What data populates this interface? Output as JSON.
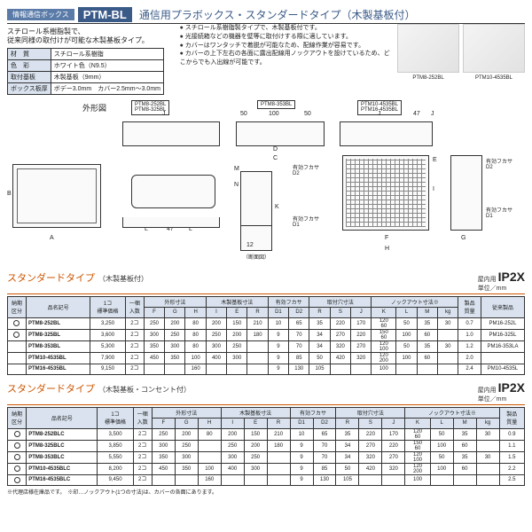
{
  "header": {
    "tag": "情報通信ボックス",
    "model": "PTM-BL",
    "title": "通信用プラボックス・スタンダードタイプ（木製基板付）"
  },
  "subtitle": "スチロール系樹脂製で、\n従来同様の取付けが可能な木製基板タイプ。",
  "features": [
    "スチロール系樹脂製タイプで、木製基板付です。",
    "光接続箱などの機器を壁等に取付けする際に適しています。",
    "カバーはワンタッチで着脱が可能なため、配線作業が容易です。",
    "カバーの上下左右の各面に露出配線用ノックアウトを設けているため、どこからでも入出線が可能です。"
  ],
  "spec": {
    "rows": [
      [
        "材　質",
        "スチロール系樹脂"
      ],
      [
        "色　彩",
        "ホワイト色（N9.5）"
      ],
      [
        "取付基板",
        "木製基板（9mm）"
      ],
      [
        "ボックス板厚",
        "ボデー3.0mm　カバー2.5mm～3.0mm"
      ]
    ]
  },
  "photos": [
    {
      "cap": "PTM8-252BL"
    },
    {
      "cap": "PTM10-4535BL"
    }
  ],
  "diagram": {
    "shape_label": "外形図",
    "group_labels": [
      "PTM8-252BL\nPTM8-325BL",
      "PTM8-353BL",
      "PTM10-4535BL\nPTM16-4535BL"
    ],
    "section_label": "（断面図）",
    "depth_labels": [
      "有効フカサ\nD2",
      "有効フカサ\nD1"
    ]
  },
  "section1": {
    "title": "スタンダードタイプ",
    "sub": "（木製基板付）",
    "ip_pre": "屋内用",
    "ip": "IP2X",
    "unit": "単位／mm",
    "head1": [
      "納期\n区分",
      "品名記号",
      "1コ\n標準価格",
      "一梱\n入数",
      "外形寸法",
      "",
      "",
      "木製基板寸法",
      "",
      "",
      "有効フカサ",
      "",
      "取付穴寸法",
      "",
      "",
      "ノックアウト寸法※",
      "",
      "",
      "",
      "製品\n質量",
      "従来製品"
    ],
    "head2": [
      "",
      "",
      "",
      "",
      "F",
      "G",
      "H",
      "I",
      "E",
      "R",
      "D1",
      "D2",
      "R",
      "S",
      "J",
      "K",
      "L",
      "M",
      "kg",
      ""
    ],
    "rows": [
      [
        "○",
        "PTM8-252BL",
        "3,250",
        "2コ",
        "250",
        "200",
        "80",
        "200",
        "150",
        "210",
        "10",
        "65",
        "35",
        "220",
        "170",
        "120\n60",
        "50",
        "35",
        "30",
        "0.7",
        "PM16-252L"
      ],
      [
        "○",
        "PTM8-325BL",
        "3,600",
        "2コ",
        "300",
        "250",
        "80",
        "250",
        "200",
        "180",
        "9",
        "70",
        "34",
        "270",
        "220",
        "150\n60",
        "100",
        "60",
        " ",
        "1.0",
        "PM16-325L"
      ],
      [
        "",
        "PTM8-353BL",
        "5,300",
        "2コ",
        "350",
        "300",
        "80",
        "300",
        "250",
        "  ",
        "9",
        "70",
        "34",
        "320",
        "270",
        "120\n100",
        "50",
        "35",
        "30",
        "1.2",
        "PM16-353LA"
      ],
      [
        "",
        "PTM10-4535BL",
        "7,900",
        "2コ",
        "450",
        "350",
        "100",
        "400",
        "300",
        "  ",
        "9",
        "85",
        "50",
        "420",
        "320",
        "120\n200",
        "100",
        "60",
        " ",
        "2.0",
        ""
      ],
      [
        "",
        "PTM16-4535BL",
        "9,150",
        "2コ",
        " ",
        " ",
        "160",
        " ",
        " ",
        "  ",
        "9",
        "130",
        "105",
        " ",
        " ",
        "100",
        " ",
        " ",
        " ",
        "2.4",
        "PM10-4535L"
      ]
    ]
  },
  "section2": {
    "title": "スタンダードタイプ",
    "sub": "（木製基板・コンセント付）",
    "ip_pre": "屋内用",
    "ip": "IP2X",
    "unit": "単位／mm",
    "head1": [
      "納期\n区分",
      "品名記号",
      "1コ\n標準価格",
      "一梱\n入数",
      "外形寸法",
      "",
      "",
      "木製基板寸法",
      "",
      "",
      "有効フカサ",
      "",
      "取付穴寸法",
      "",
      "",
      "ノックアウト寸法※",
      "",
      "",
      "",
      "製品\n質量"
    ],
    "head2": [
      "",
      "",
      "",
      "",
      "F",
      "G",
      "H",
      "I",
      "E",
      "R",
      "D1",
      "D2",
      "R",
      "S",
      "J",
      "K",
      "L",
      "M",
      "kg"
    ],
    "rows": [
      [
        "○",
        "PTM8-252BLC",
        "3,500",
        "2コ",
        "250",
        "200",
        "80",
        "200",
        "150",
        "210",
        "10",
        "65",
        "35",
        "220",
        "170",
        "120\n60",
        "50",
        "35",
        "30",
        "0.9"
      ],
      [
        "○",
        "PTM8-325BLC",
        "3,850",
        "2コ",
        "300",
        "250",
        "",
        "250",
        "200",
        "180",
        "9",
        "70",
        "34",
        "270",
        "220",
        "150\n60",
        "100",
        "60",
        " ",
        "1.1"
      ],
      [
        "○",
        "PTM8-353BLC",
        "5,550",
        "2コ",
        "350",
        "300",
        "",
        "300",
        "250",
        "",
        "9",
        "70",
        "34",
        "320",
        "270",
        "120\n100",
        "50",
        "35",
        "30",
        "1.5"
      ],
      [
        "○",
        "PTM10-4535BLC",
        "8,200",
        "2コ",
        "450",
        "350",
        "100",
        "400",
        "300",
        "",
        "9",
        "85",
        "50",
        "420",
        "320",
        "120\n200",
        "100",
        "60",
        " ",
        "2.2"
      ],
      [
        "○",
        "PTM16-4535BLC",
        "9,450",
        "2コ",
        "",
        "",
        "160",
        "",
        "",
        "",
        "9",
        "130",
        "105",
        "",
        "",
        "100",
        " ",
        " ",
        " ",
        "2.5"
      ]
    ]
  },
  "notes": "※代理店様在庫品です。　※印…ノックアウト(1つの寸法)は、カバーの各面にあります。"
}
